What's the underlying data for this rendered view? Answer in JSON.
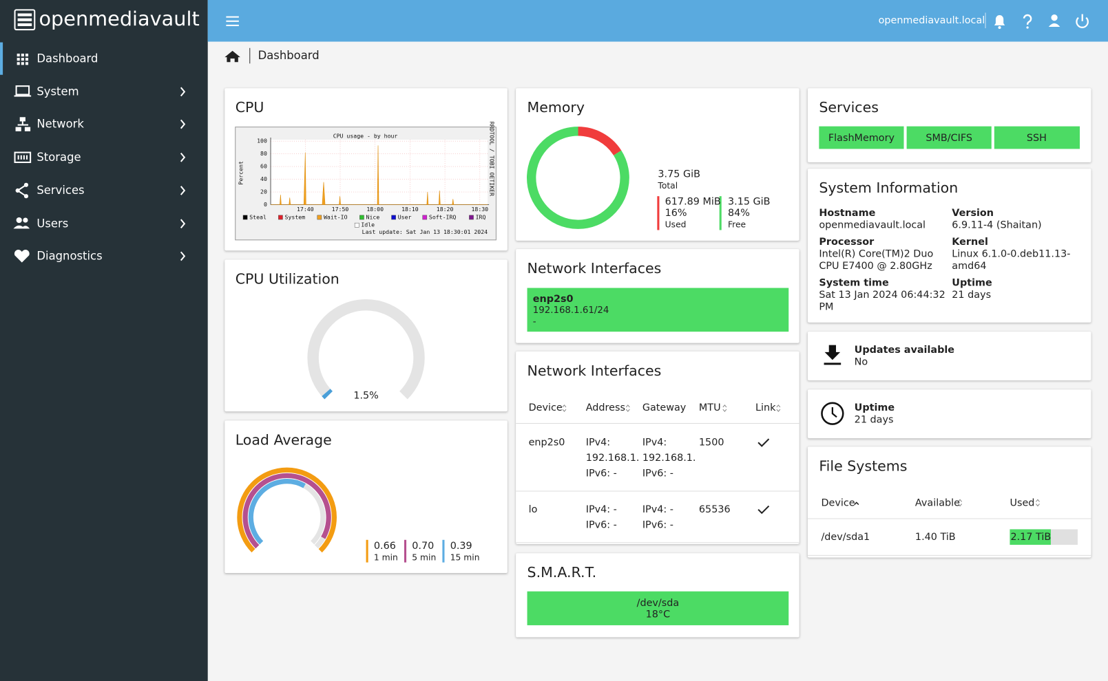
{
  "brand": "openmediavault",
  "nav": [
    "Dashboard",
    "System",
    "Network",
    "Storage",
    "Services",
    "Users",
    "Diagnostics"
  ],
  "topbar": {
    "hostname": "openmediavault.local"
  },
  "breadcrumb": "Dashboard",
  "cpu": {
    "title": "CPU",
    "graph": {
      "title": "CPU usage - by hour",
      "y_label": "Percent",
      "yticks": [
        0,
        20,
        40,
        60,
        80,
        100
      ],
      "xticks": [
        "17:40",
        "17:50",
        "18:00",
        "18:10",
        "18:20",
        "18:30"
      ],
      "legend": [
        {
          "name": "Steal",
          "color": "#000000"
        },
        {
          "name": "System",
          "color": "#e0202a"
        },
        {
          "name": "Wait-IO",
          "color": "#f0a020"
        },
        {
          "name": "Nice",
          "color": "#30c030"
        },
        {
          "name": "User",
          "color": "#1010d0"
        },
        {
          "name": "Soft-IRQ",
          "color": "#d020d0"
        },
        {
          "name": "IRQ",
          "color": "#801890"
        },
        {
          "name": "Idle",
          "color": "#ffffff"
        }
      ],
      "watermark": "RRDTOOL / TOBI OETIKER",
      "last_update": "Last update: Sat Jan 13 18:30:01 2024"
    }
  },
  "cpu_utilization": {
    "title": "CPU Utilization",
    "usage": {
      "value": 1.5,
      "label": "1.5%"
    }
  },
  "load_average": {
    "title": "Load Average",
    "items": [
      {
        "value": "0.66",
        "label": "1 min"
      },
      {
        "value": "0.70",
        "label": "5 min"
      },
      {
        "value": "0.39",
        "label": "15 min"
      }
    ]
  },
  "memory": {
    "title": "Memory",
    "total": "3.75 GiB",
    "total_label": "Total",
    "used": {
      "amount": "617.89 MiB",
      "percent": {
        "value": 16,
        "label": "16%"
      },
      "label": "Used"
    },
    "free": {
      "amount": "3.15 GiB",
      "percent": {
        "value": 84,
        "label": "84%"
      },
      "label": "Free"
    }
  },
  "network_interfaces": {
    "title": "Network Interfaces",
    "name": "enp2s0",
    "address": "192.168.1.61/24",
    "extra": "-"
  },
  "network_table": {
    "title": "Network Interfaces",
    "columns": [
      "Device",
      "Address",
      "Gateway",
      "MTU",
      "Link"
    ],
    "rows": [
      {
        "device": "enp2s0",
        "address": [
          "IPv4:",
          "192.168.1.",
          "IPv6: -"
        ],
        "gateway": [
          "IPv4:",
          "192.168.1.",
          "IPv6: -"
        ],
        "mtu": "1500"
      },
      {
        "device": "lo",
        "address": [
          "IPv4: -",
          "IPv6: -"
        ],
        "gateway": [
          "IPv4: -",
          "IPv6: -"
        ],
        "mtu": "65536"
      }
    ]
  },
  "smart": {
    "title": "S.M.A.R.T.",
    "device": "/dev/sda",
    "temperature": "18°C"
  },
  "services": {
    "title": "Services",
    "items": [
      "FlashMemory",
      "SMB/CIFS",
      "SSH"
    ]
  },
  "system_information": {
    "title": "System Information",
    "fields": [
      {
        "label": "Hostname",
        "value": [
          "openmediavault.local"
        ]
      },
      {
        "label": "Version",
        "value": [
          "6.9.11-4 (Shaitan)"
        ]
      },
      {
        "label": "Processor",
        "value": [
          "Intel(R) Core(TM)2 Duo",
          "CPU E7400 @ 2.80GHz"
        ]
      },
      {
        "label": "Kernel",
        "value": [
          "Linux 6.1.0-0.deb11.13-",
          "amd64"
        ]
      },
      {
        "label": "System time",
        "value": [
          "Sat 13 Jan 2024 06:44:32",
          "PM"
        ]
      },
      {
        "label": "Uptime",
        "value": [
          "21 days"
        ]
      }
    ]
  },
  "updates": {
    "title": "Updates available",
    "value": "No"
  },
  "uptime": {
    "title": "Uptime",
    "value": "21 days"
  },
  "file_systems": {
    "title": "File Systems",
    "columns": [
      "Device",
      "Available",
      "Used"
    ],
    "rows": [
      {
        "device": "/dev/sda1",
        "available": "1.40 TiB",
        "used": "2.17 TiB"
      }
    ]
  }
}
